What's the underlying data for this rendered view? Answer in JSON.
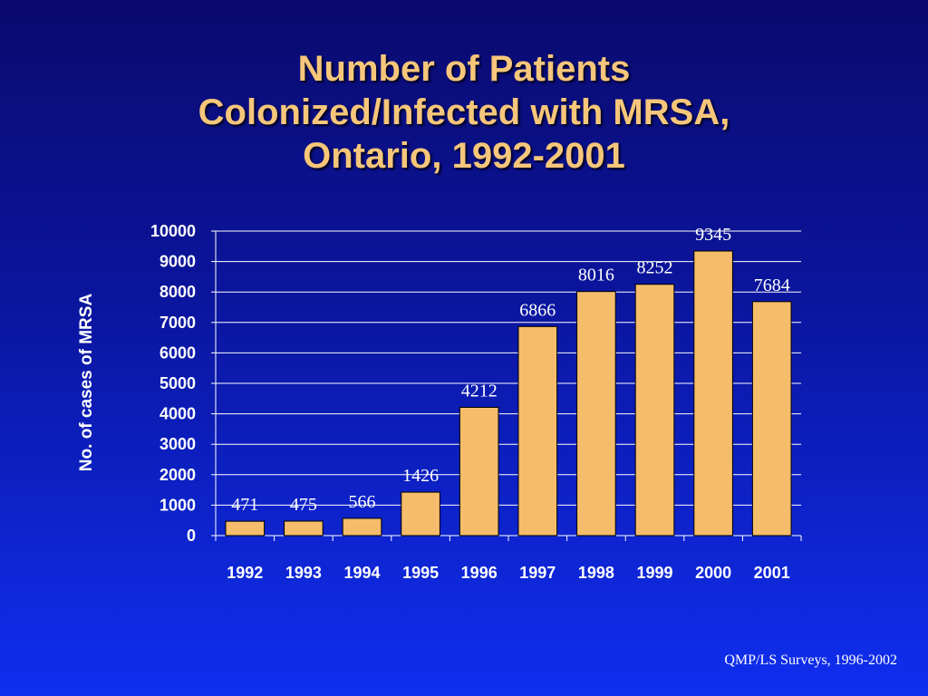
{
  "slide": {
    "title_lines": [
      "Number of Patients",
      "Colonized/Infected with MRSA,",
      "Ontario, 1992-2001"
    ],
    "source": "QMP/LS Surveys, 1996-2002"
  },
  "colors": {
    "bar_fill": "#f5bd6b",
    "bar_stroke": "#000000",
    "title": "#f6c67a",
    "text": "#ffffff",
    "gridline": "#ffffff",
    "background_top": "#0a0a6e",
    "background_bottom": "#0f2ef0"
  },
  "chart_data": {
    "type": "bar",
    "title": "Number of Patients Colonized/Infected with MRSA, Ontario, 1992-2001",
    "xlabel": "",
    "ylabel": "No. of cases of MRSA",
    "categories": [
      "1992",
      "1993",
      "1994",
      "1995",
      "1996",
      "1997",
      "1998",
      "1999",
      "2000",
      "2001"
    ],
    "values": [
      471,
      475,
      566,
      1426,
      4212,
      6866,
      8016,
      8252,
      9345,
      7684
    ],
    "ylim": [
      0,
      10000
    ],
    "yticks": [
      0,
      1000,
      2000,
      3000,
      4000,
      5000,
      6000,
      7000,
      8000,
      9000,
      10000
    ],
    "grid": true,
    "legend": "none"
  }
}
